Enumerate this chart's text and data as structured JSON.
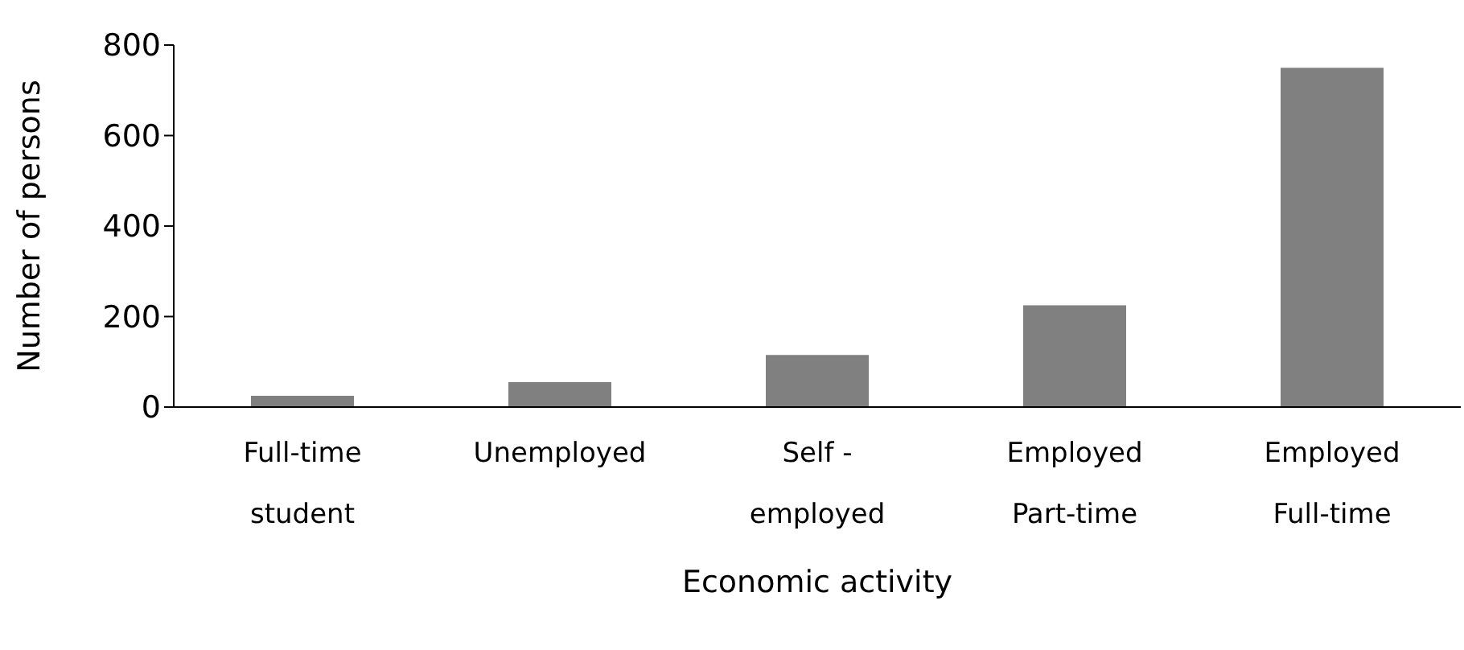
{
  "chart_data": {
    "type": "bar",
    "xlabel": "Economic activity",
    "ylabel": "Number of persons",
    "categories": [
      "Full-time student",
      "Unemployed",
      "Self - employed",
      "Employed Part-time",
      "Employed Full-time"
    ],
    "values": [
      25,
      55,
      115,
      225,
      750
    ],
    "color": "#808080",
    "ylim": [
      0,
      800
    ],
    "yticks": [
      0,
      200,
      400,
      600,
      800
    ],
    "grid": false,
    "legend": false
  }
}
